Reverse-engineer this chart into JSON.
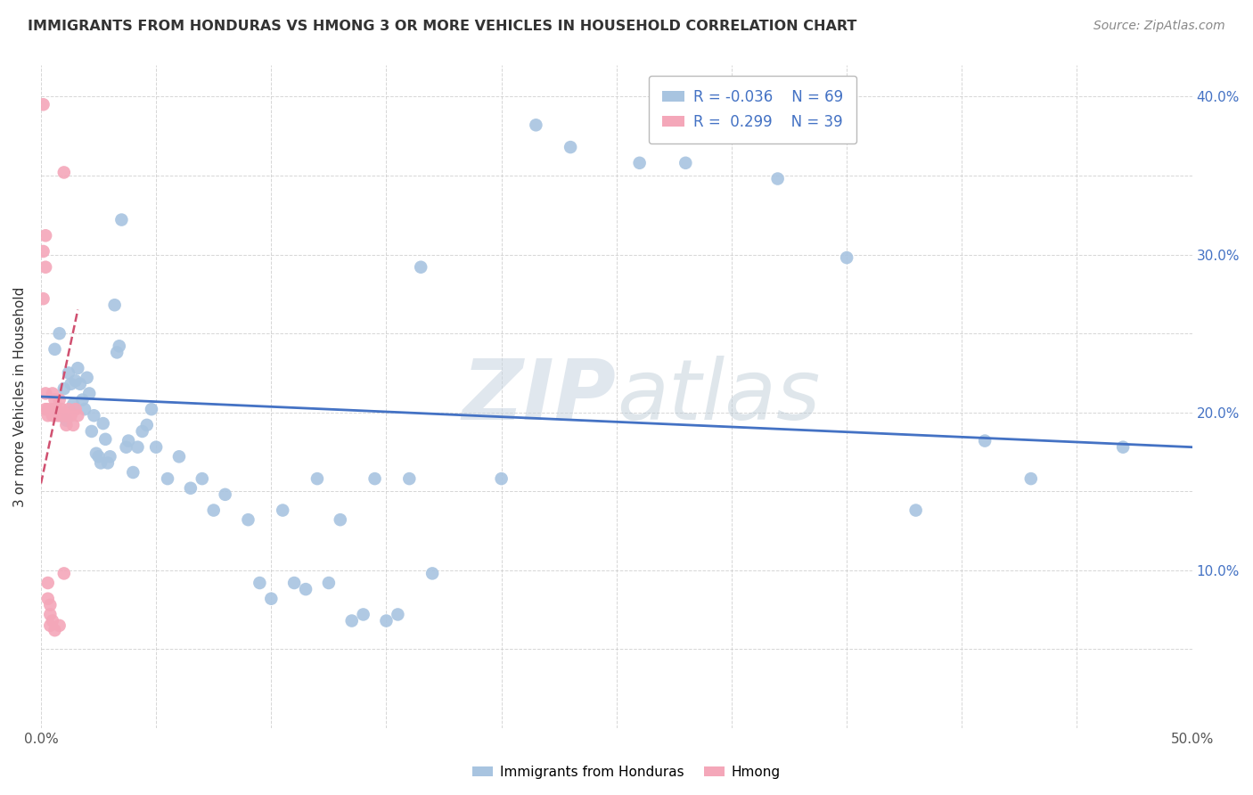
{
  "title": "IMMIGRANTS FROM HONDURAS VS HMONG 3 OR MORE VEHICLES IN HOUSEHOLD CORRELATION CHART",
  "source": "Source: ZipAtlas.com",
  "xlabel": "",
  "ylabel": "3 or more Vehicles in Household",
  "xlim": [
    0.0,
    0.5
  ],
  "ylim": [
    0.0,
    0.42
  ],
  "xtick_vals": [
    0.0,
    0.05,
    0.1,
    0.15,
    0.2,
    0.25,
    0.3,
    0.35,
    0.4,
    0.45,
    0.5
  ],
  "ytick_vals": [
    0.0,
    0.05,
    0.1,
    0.15,
    0.2,
    0.25,
    0.3,
    0.35,
    0.4
  ],
  "xtick_labels": [
    "0.0%",
    "",
    "",
    "",
    "",
    "",
    "",
    "",
    "",
    "",
    "50.0%"
  ],
  "ytick_labels_right": [
    "",
    "",
    "10.0%",
    "",
    "20.0%",
    "",
    "30.0%",
    "",
    "40.0%"
  ],
  "legend_r_honduras": "-0.036",
  "legend_n_honduras": "69",
  "legend_r_hmong": "0.299",
  "legend_n_hmong": "39",
  "color_honduras": "#a8c4e0",
  "color_hmong": "#f4a7b9",
  "trendline_honduras_color": "#4472c4",
  "trendline_hmong_color": "#d05070",
  "watermark": "ZIPatlas",
  "honduras_x": [
    0.006,
    0.008,
    0.01,
    0.011,
    0.012,
    0.013,
    0.014,
    0.015,
    0.016,
    0.017,
    0.018,
    0.019,
    0.02,
    0.021,
    0.022,
    0.023,
    0.024,
    0.025,
    0.026,
    0.027,
    0.028,
    0.029,
    0.03,
    0.032,
    0.033,
    0.034,
    0.035,
    0.037,
    0.038,
    0.04,
    0.042,
    0.044,
    0.046,
    0.048,
    0.05,
    0.055,
    0.06,
    0.065,
    0.07,
    0.075,
    0.08,
    0.09,
    0.095,
    0.1,
    0.105,
    0.11,
    0.115,
    0.12,
    0.125,
    0.13,
    0.135,
    0.14,
    0.145,
    0.15,
    0.155,
    0.16,
    0.165,
    0.17,
    0.2,
    0.215,
    0.23,
    0.26,
    0.28,
    0.32,
    0.35,
    0.38,
    0.41,
    0.43,
    0.47
  ],
  "honduras_y": [
    0.24,
    0.25,
    0.215,
    0.195,
    0.225,
    0.218,
    0.205,
    0.22,
    0.228,
    0.218,
    0.208,
    0.202,
    0.222,
    0.212,
    0.188,
    0.198,
    0.174,
    0.172,
    0.168,
    0.193,
    0.183,
    0.168,
    0.172,
    0.268,
    0.238,
    0.242,
    0.322,
    0.178,
    0.182,
    0.162,
    0.178,
    0.188,
    0.192,
    0.202,
    0.178,
    0.158,
    0.172,
    0.152,
    0.158,
    0.138,
    0.148,
    0.132,
    0.092,
    0.082,
    0.138,
    0.092,
    0.088,
    0.158,
    0.092,
    0.132,
    0.068,
    0.072,
    0.158,
    0.068,
    0.072,
    0.158,
    0.292,
    0.098,
    0.158,
    0.382,
    0.368,
    0.358,
    0.358,
    0.348,
    0.298,
    0.138,
    0.182,
    0.158,
    0.178
  ],
  "hmong_x": [
    0.001,
    0.001,
    0.001,
    0.002,
    0.002,
    0.002,
    0.002,
    0.003,
    0.003,
    0.003,
    0.003,
    0.004,
    0.004,
    0.004,
    0.005,
    0.005,
    0.005,
    0.005,
    0.006,
    0.006,
    0.006,
    0.007,
    0.007,
    0.008,
    0.008,
    0.008,
    0.009,
    0.009,
    0.01,
    0.01,
    0.01,
    0.011,
    0.011,
    0.012,
    0.012,
    0.013,
    0.014,
    0.015,
    0.016
  ],
  "hmong_y": [
    0.395,
    0.302,
    0.272,
    0.312,
    0.292,
    0.212,
    0.202,
    0.202,
    0.198,
    0.092,
    0.082,
    0.078,
    0.072,
    0.065,
    0.212,
    0.202,
    0.198,
    0.068,
    0.208,
    0.202,
    0.062,
    0.202,
    0.198,
    0.208,
    0.198,
    0.065,
    0.202,
    0.198,
    0.198,
    0.098,
    0.352,
    0.198,
    0.192,
    0.202,
    0.198,
    0.198,
    0.192,
    0.202,
    0.198
  ],
  "trendline_h_x0": 0.0,
  "trendline_h_x1": 0.5,
  "trendline_h_y0": 0.21,
  "trendline_h_y1": 0.178,
  "trendline_m_x0": 0.0,
  "trendline_m_x1": 0.016,
  "trendline_m_y0": 0.155,
  "trendline_m_y1": 0.265
}
